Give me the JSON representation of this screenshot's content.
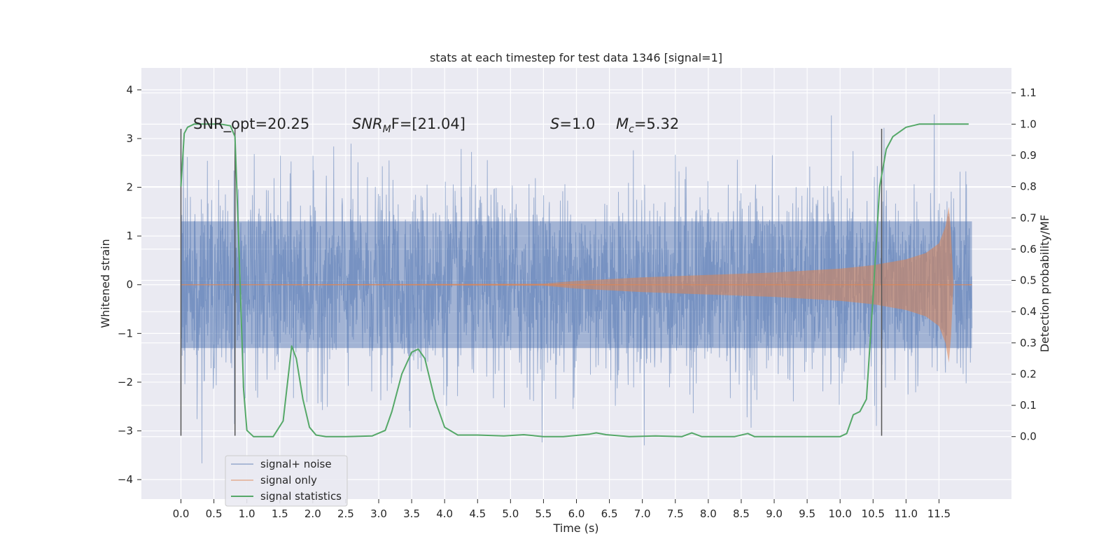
{
  "chart_data": {
    "type": "line",
    "title": "stats at each timestep for test data 1346 [signal=1]",
    "xlabel": "Time (s)",
    "ylabel": "Whitened strain",
    "ylabel_right": "Detection probability/MF",
    "xlim": [
      -0.6,
      12.6
    ],
    "ylim": [
      -4.4,
      4.45
    ],
    "ylim_right": [
      -0.2,
      1.18
    ],
    "x_ticks": [
      "0.0",
      "0.5",
      "1.0",
      "1.5",
      "2.0",
      "2.5",
      "3.0",
      "3.5",
      "4.0",
      "4.5",
      "5.0",
      "5.5",
      "6.0",
      "6.5",
      "7.0",
      "7.5",
      "8.0",
      "8.5",
      "9.0",
      "9.5",
      "10.0",
      "10.5",
      "11.0",
      "11.5"
    ],
    "x_tick_values": [
      0,
      0.5,
      1,
      1.5,
      2,
      2.5,
      3,
      3.5,
      4,
      4.5,
      5,
      5.5,
      6,
      6.5,
      7,
      7.5,
      8,
      8.5,
      9,
      9.5,
      10,
      10.5,
      11,
      11.5
    ],
    "y_ticks": [
      "4",
      "3",
      "2",
      "1",
      "0",
      "−1",
      "−2",
      "−3",
      "−4"
    ],
    "y_tick_values": [
      4,
      3,
      2,
      1,
      0,
      -1,
      -2,
      -3,
      -4
    ],
    "y_right_ticks": [
      "1.1",
      "1.0",
      "0.9",
      "0.8",
      "0.7",
      "0.6",
      "0.5",
      "0.4",
      "0.3",
      "0.2",
      "0.1",
      "0.0"
    ],
    "y_right_tick_values": [
      1.1,
      1.0,
      0.9,
      0.8,
      0.7,
      0.6,
      0.5,
      0.4,
      0.3,
      0.2,
      0.1,
      0.0
    ],
    "grid": true,
    "legend_position": "lower-left",
    "annotations": {
      "snr_opt": "SNR_opt=20.25",
      "snr_mf_symbol": "SNR",
      "snr_mf_sub": "M",
      "snr_mf_rest": "F=[21.04]",
      "s_symbol": "S",
      "s_value": "=1.0",
      "mc_symbol": "M",
      "mc_sub": "c",
      "mc_value": "=5.32"
    },
    "markers_x": [
      0.0,
      0.82,
      10.63
    ],
    "markers_ylim": [
      -3.1,
      3.2
    ],
    "noise": {
      "t_start": 0.0,
      "t_end": 12.0,
      "amplitude_typical": 1.3,
      "amplitude_peak": 4.1
    },
    "signal_envelope": {
      "x": [
        0.0,
        5.5,
        6.0,
        7.0,
        8.0,
        9.0,
        10.0,
        10.5,
        11.0,
        11.3,
        11.5,
        11.6,
        11.65,
        11.68,
        11.72
      ],
      "y": [
        0.0,
        0.02,
        0.08,
        0.15,
        0.2,
        0.25,
        0.33,
        0.4,
        0.52,
        0.65,
        0.85,
        1.2,
        1.6,
        1.1,
        0.0
      ]
    },
    "series": [
      {
        "name": "signal+ noise",
        "color": "#4c72b0"
      },
      {
        "name": "signal only",
        "color": "#dd8452"
      },
      {
        "name": "signal statistics",
        "color": "#55a868",
        "x": [
          0.0,
          0.05,
          0.1,
          0.2,
          0.3,
          0.6,
          0.75,
          0.82,
          0.88,
          0.95,
          1.0,
          1.1,
          1.4,
          1.55,
          1.68,
          1.75,
          1.85,
          1.95,
          2.05,
          2.2,
          2.5,
          2.9,
          3.1,
          3.2,
          3.35,
          3.5,
          3.6,
          3.7,
          3.85,
          4.0,
          4.2,
          4.5,
          4.9,
          5.2,
          5.5,
          5.8,
          6.2,
          6.3,
          6.45,
          6.8,
          7.2,
          7.6,
          7.75,
          7.9,
          8.4,
          8.6,
          8.7,
          9.0,
          9.5,
          10.0,
          10.1,
          10.2,
          10.3,
          10.4,
          10.5,
          10.6,
          10.7,
          10.8,
          11.0,
          11.2,
          11.4,
          11.95
        ],
        "y": [
          0.8,
          0.97,
          0.99,
          1.0,
          1.0,
          1.0,
          0.995,
          0.96,
          0.6,
          0.15,
          0.02,
          0.0,
          0.0,
          0.05,
          0.29,
          0.25,
          0.12,
          0.03,
          0.005,
          0.0,
          0.0,
          0.002,
          0.02,
          0.08,
          0.2,
          0.27,
          0.28,
          0.25,
          0.12,
          0.03,
          0.005,
          0.005,
          0.002,
          0.006,
          0.0,
          0.0,
          0.008,
          0.012,
          0.006,
          0.0,
          0.002,
          0.0,
          0.012,
          0.0,
          0.0,
          0.01,
          0.0,
          0.0,
          0.0,
          0.0,
          0.01,
          0.07,
          0.08,
          0.12,
          0.45,
          0.8,
          0.92,
          0.96,
          0.99,
          1.0,
          1.0,
          1.0
        ]
      }
    ]
  }
}
